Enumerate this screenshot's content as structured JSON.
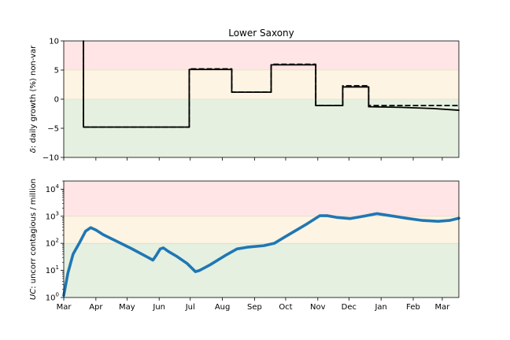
{
  "chart_data": [
    {
      "type": "line",
      "title": "Lower Saxony",
      "ylabel": "δ: daily growth (%) non-var",
      "ylabel_prefix": "δ",
      "ylabel_rest": ": daily growth (%) non-var",
      "xlim": [
        "2020-03-01",
        "2021-03-17"
      ],
      "ylim": [
        -10,
        10
      ],
      "yticks": [
        10,
        5,
        0,
        -5,
        -10
      ],
      "ytick_labels": [
        "10",
        "5",
        "0",
        "−5",
        "−10"
      ],
      "bands": [
        {
          "from": 5,
          "to": 10,
          "color": "#ffe5e5"
        },
        {
          "from": 0,
          "to": 5,
          "color": "#fdf4e3"
        },
        {
          "from": -10,
          "to": 0,
          "color": "#e5f0e0"
        }
      ],
      "series": [
        {
          "style": "solid",
          "color": "#000000",
          "points": [
            [
              "2020-03-20",
              10
            ],
            [
              "2020-03-20",
              -4.8
            ],
            [
              "2020-06-30",
              -4.8
            ],
            [
              "2020-06-30",
              5.1
            ],
            [
              "2020-08-10",
              5.1
            ],
            [
              "2020-08-10",
              1.2
            ],
            [
              "2020-09-17",
              1.2
            ],
            [
              "2020-09-17",
              5.9
            ],
            [
              "2020-10-30",
              5.9
            ],
            [
              "2020-10-30",
              -1.1
            ],
            [
              "2020-11-25",
              -1.1
            ],
            [
              "2020-11-25",
              2.1
            ],
            [
              "2020-12-20",
              2.1
            ],
            [
              "2020-12-20",
              -1.3
            ],
            [
              "2021-01-20",
              -1.4
            ],
            [
              "2021-02-20",
              -1.6
            ],
            [
              "2021-03-17",
              -1.9
            ]
          ]
        },
        {
          "style": "dashed",
          "color": "#000000",
          "points": [
            [
              "2020-03-20",
              10
            ],
            [
              "2020-03-20",
              -4.8
            ],
            [
              "2020-06-30",
              -4.8
            ],
            [
              "2020-06-30",
              5.2
            ],
            [
              "2020-08-10",
              5.2
            ],
            [
              "2020-08-10",
              1.2
            ],
            [
              "2020-09-17",
              1.2
            ],
            [
              "2020-09-17",
              6.0
            ],
            [
              "2020-10-30",
              6.0
            ],
            [
              "2020-10-30",
              -1.1
            ],
            [
              "2020-11-25",
              -1.1
            ],
            [
              "2020-11-25",
              2.3
            ],
            [
              "2020-12-20",
              2.3
            ],
            [
              "2020-12-20",
              -1.1
            ],
            [
              "2021-03-17",
              -1.1
            ]
          ]
        }
      ]
    },
    {
      "type": "line",
      "ylabel": "UC: uncorr contagious / million",
      "ylabel_prefix": "UC",
      "ylabel_rest": ": uncorr contagious / million",
      "xlim": [
        "2020-03-01",
        "2021-03-17"
      ],
      "yscale": "log",
      "ylim": [
        1,
        20000
      ],
      "yticks": [
        {
          "value": 1,
          "base": "10",
          "exp": "0"
        },
        {
          "value": 10,
          "base": "10",
          "exp": "1"
        },
        {
          "value": 100,
          "base": "10",
          "exp": "2"
        },
        {
          "value": 1000,
          "base": "10",
          "exp": "3"
        },
        {
          "value": 10000,
          "base": "10",
          "exp": "4"
        }
      ],
      "xtick_labels": [
        {
          "date": "2020-03-01",
          "label": "Mar"
        },
        {
          "date": "2020-04-01",
          "label": "Apr"
        },
        {
          "date": "2020-05-01",
          "label": "May"
        },
        {
          "date": "2020-06-01",
          "label": "Jun"
        },
        {
          "date": "2020-07-01",
          "label": "Jul"
        },
        {
          "date": "2020-08-01",
          "label": "Aug"
        },
        {
          "date": "2020-09-01",
          "label": "Sep"
        },
        {
          "date": "2020-10-01",
          "label": "Oct"
        },
        {
          "date": "2020-11-01",
          "label": "Nov"
        },
        {
          "date": "2020-12-01",
          "label": "Dec"
        },
        {
          "date": "2021-01-01",
          "label": "Jan"
        },
        {
          "date": "2021-02-01",
          "label": "Feb"
        },
        {
          "date": "2021-03-01",
          "label": "Mar"
        }
      ],
      "bands": [
        {
          "from": 1000,
          "to": 20000,
          "color": "#ffe5e5"
        },
        {
          "from": 100,
          "to": 1000,
          "color": "#fdf4e3"
        },
        {
          "from": 1,
          "to": 100,
          "color": "#e5f0e0"
        }
      ],
      "series": [
        {
          "style": "solid",
          "color": "#1f77b4",
          "points": [
            [
              "2020-03-01",
              1.2
            ],
            [
              "2020-03-05",
              8
            ],
            [
              "2020-03-10",
              40
            ],
            [
              "2020-03-17",
              120
            ],
            [
              "2020-03-22",
              280
            ],
            [
              "2020-03-27",
              380
            ],
            [
              "2020-04-01",
              310
            ],
            [
              "2020-04-08",
              210
            ],
            [
              "2020-04-20",
              125
            ],
            [
              "2020-05-05",
              65
            ],
            [
              "2020-05-20",
              32
            ],
            [
              "2020-05-26",
              24
            ],
            [
              "2020-05-29",
              35
            ],
            [
              "2020-06-02",
              62
            ],
            [
              "2020-06-05",
              68
            ],
            [
              "2020-06-10",
              50
            ],
            [
              "2020-06-18",
              33
            ],
            [
              "2020-06-28",
              18
            ],
            [
              "2020-07-06",
              9
            ],
            [
              "2020-07-10",
              10
            ],
            [
              "2020-07-20",
              16
            ],
            [
              "2020-08-05",
              38
            ],
            [
              "2020-08-15",
              62
            ],
            [
              "2020-08-25",
              72
            ],
            [
              "2020-09-10",
              82
            ],
            [
              "2020-09-20",
              100
            ],
            [
              "2020-10-01",
              180
            ],
            [
              "2020-10-20",
              480
            ],
            [
              "2020-11-03",
              1050
            ],
            [
              "2020-11-10",
              1050
            ],
            [
              "2020-11-20",
              900
            ],
            [
              "2020-12-02",
              820
            ],
            [
              "2020-12-15",
              1000
            ],
            [
              "2020-12-28",
              1250
            ],
            [
              "2021-01-10",
              1050
            ],
            [
              "2021-01-25",
              850
            ],
            [
              "2021-02-10",
              700
            ],
            [
              "2021-02-25",
              650
            ],
            [
              "2021-03-08",
              700
            ],
            [
              "2021-03-17",
              850
            ]
          ]
        }
      ]
    }
  ]
}
